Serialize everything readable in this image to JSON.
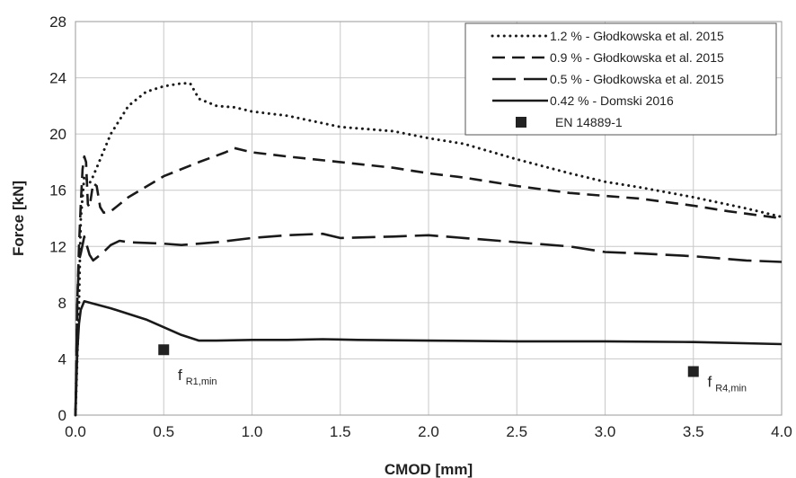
{
  "chart_data": {
    "type": "line",
    "title": "",
    "xlabel": "CMOD [mm]",
    "ylabel": "Force [kN]",
    "xlim": [
      0,
      4
    ],
    "ylim": [
      0,
      28
    ],
    "xticks": [
      "0.0",
      "0.5",
      "1.0",
      "1.5",
      "2.0",
      "2.5",
      "3.0",
      "3.5",
      "4.0"
    ],
    "yticks": [
      "0",
      "4",
      "8",
      "12",
      "16",
      "20",
      "24",
      "28"
    ],
    "grid": true,
    "legend_position": "top-right",
    "series": [
      {
        "name": "1.2 % - Głodkowska  et al. 2015",
        "style": "dotted",
        "points": [
          [
            0,
            0
          ],
          [
            0.02,
            8
          ],
          [
            0.03,
            14
          ],
          [
            0.05,
            17
          ],
          [
            0.08,
            16.5
          ],
          [
            0.1,
            17
          ],
          [
            0.15,
            18.5
          ],
          [
            0.2,
            20
          ],
          [
            0.3,
            22
          ],
          [
            0.4,
            23
          ],
          [
            0.5,
            23.4
          ],
          [
            0.6,
            23.6
          ],
          [
            0.65,
            23.6
          ],
          [
            0.7,
            22.5
          ],
          [
            0.8,
            22
          ],
          [
            0.9,
            21.9
          ],
          [
            1.0,
            21.6
          ],
          [
            1.2,
            21.3
          ],
          [
            1.5,
            20.5
          ],
          [
            1.8,
            20.2
          ],
          [
            2.0,
            19.7
          ],
          [
            2.2,
            19.3
          ],
          [
            2.5,
            18.2
          ],
          [
            2.8,
            17.2
          ],
          [
            3.0,
            16.6
          ],
          [
            3.2,
            16.2
          ],
          [
            3.5,
            15.5
          ],
          [
            3.8,
            14.7
          ],
          [
            4.0,
            14.1
          ]
        ]
      },
      {
        "name": "0.9 % - Głodkowska  et al. 2015",
        "style": "dashed",
        "points": [
          [
            0,
            0
          ],
          [
            0.01,
            8
          ],
          [
            0.02,
            12
          ],
          [
            0.03,
            15
          ],
          [
            0.04,
            17.5
          ],
          [
            0.05,
            18.4
          ],
          [
            0.06,
            18
          ],
          [
            0.07,
            15
          ],
          [
            0.08,
            14.8
          ],
          [
            0.1,
            16.5
          ],
          [
            0.12,
            16.3
          ],
          [
            0.14,
            14.8
          ],
          [
            0.16,
            14.4
          ],
          [
            0.2,
            14.5
          ],
          [
            0.3,
            15.5
          ],
          [
            0.5,
            17
          ],
          [
            0.7,
            18
          ],
          [
            0.85,
            18.7
          ],
          [
            0.9,
            19
          ],
          [
            1.0,
            18.7
          ],
          [
            1.2,
            18.4
          ],
          [
            1.5,
            18.0
          ],
          [
            1.8,
            17.6
          ],
          [
            2.0,
            17.2
          ],
          [
            2.2,
            16.9
          ],
          [
            2.5,
            16.3
          ],
          [
            2.8,
            15.8
          ],
          [
            3.0,
            15.6
          ],
          [
            3.2,
            15.4
          ],
          [
            3.5,
            14.9
          ],
          [
            3.7,
            14.5
          ],
          [
            4.0,
            14.0
          ]
        ]
      },
      {
        "name": "0.5 % - Głodkowska  et al. 2015",
        "style": "long-dashed",
        "points": [
          [
            0,
            0
          ],
          [
            0.01,
            8
          ],
          [
            0.02,
            11
          ],
          [
            0.03,
            11.5
          ],
          [
            0.05,
            12.7
          ],
          [
            0.08,
            11.4
          ],
          [
            0.1,
            11
          ],
          [
            0.15,
            11.5
          ],
          [
            0.2,
            12.1
          ],
          [
            0.25,
            12.4
          ],
          [
            0.3,
            12.3
          ],
          [
            0.5,
            12.2
          ],
          [
            0.6,
            12.1
          ],
          [
            0.8,
            12.3
          ],
          [
            1.0,
            12.6
          ],
          [
            1.2,
            12.8
          ],
          [
            1.4,
            12.9
          ],
          [
            1.5,
            12.6
          ],
          [
            1.8,
            12.7
          ],
          [
            2.0,
            12.8
          ],
          [
            2.2,
            12.6
          ],
          [
            2.4,
            12.4
          ],
          [
            2.6,
            12.2
          ],
          [
            2.8,
            12.0
          ],
          [
            3.0,
            11.6
          ],
          [
            3.2,
            11.5
          ],
          [
            3.5,
            11.3
          ],
          [
            3.8,
            11.0
          ],
          [
            4.0,
            10.9
          ]
        ]
      },
      {
        "name": "0.42 % - Domski  2016",
        "style": "solid",
        "points": [
          [
            0,
            0
          ],
          [
            0.01,
            4.5
          ],
          [
            0.02,
            6.5
          ],
          [
            0.03,
            7.5
          ],
          [
            0.05,
            8.1
          ],
          [
            0.2,
            7.6
          ],
          [
            0.4,
            6.8
          ],
          [
            0.6,
            5.7
          ],
          [
            0.7,
            5.3
          ],
          [
            0.8,
            5.3
          ],
          [
            1.0,
            5.35
          ],
          [
            1.2,
            5.35
          ],
          [
            1.4,
            5.4
          ],
          [
            1.6,
            5.35
          ],
          [
            2.0,
            5.3
          ],
          [
            2.5,
            5.25
          ],
          [
            3.0,
            5.25
          ],
          [
            3.5,
            5.2
          ],
          [
            4.0,
            5.05
          ]
        ]
      },
      {
        "name": "EN 14889-1",
        "style": "marker-square",
        "points": [
          [
            0.5,
            4.65
          ],
          [
            3.5,
            3.1
          ]
        ]
      }
    ],
    "annotations": [
      {
        "main": "f",
        "sub": "R1,min",
        "x": 0.58,
        "y": 2.5
      },
      {
        "main": "f",
        "sub": "R4,min",
        "x": 3.58,
        "y": 2.0
      }
    ]
  }
}
